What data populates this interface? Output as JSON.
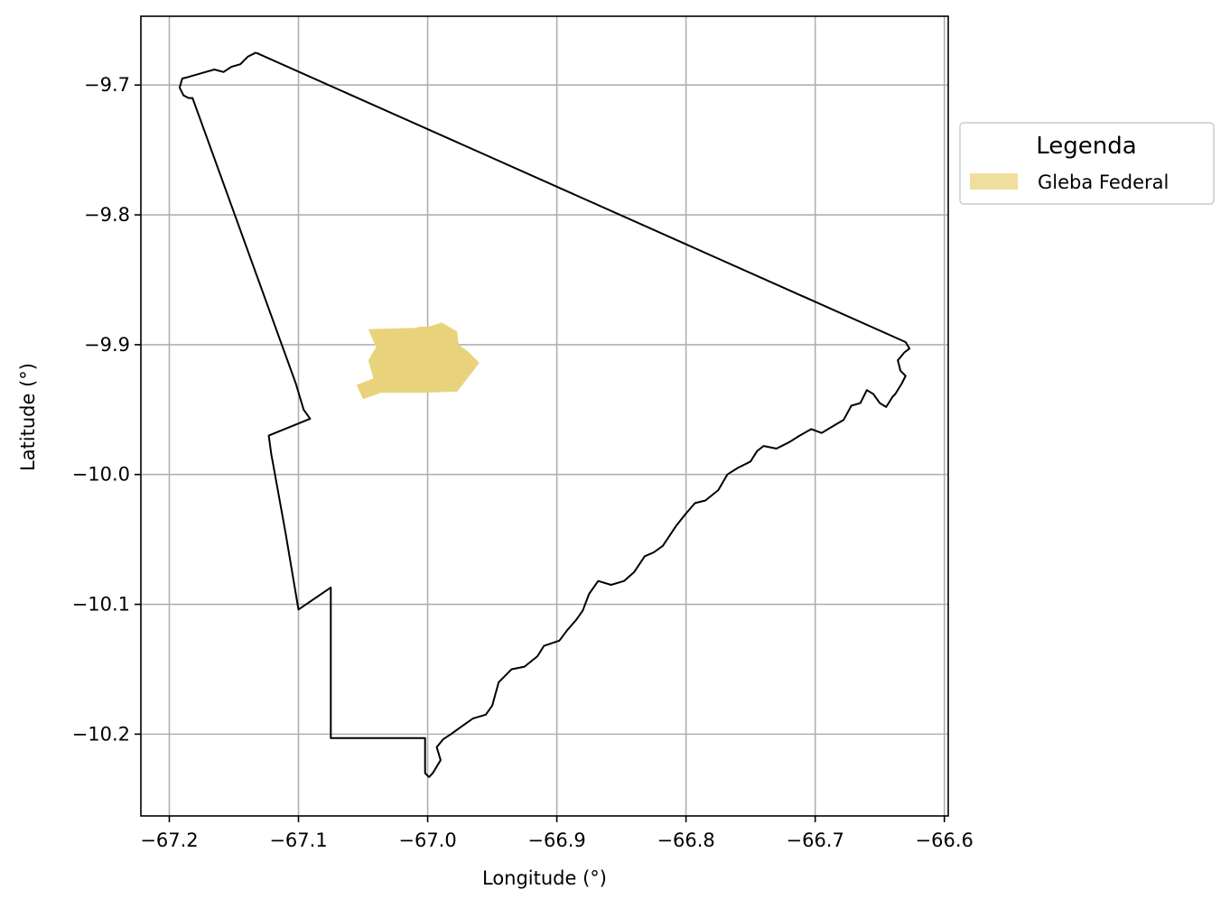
{
  "map": {
    "xlabel": "Longitude (°)",
    "ylabel": "Latitude (°)",
    "xlim": [
      -67.222,
      -66.597
    ],
    "ylim": [
      -10.263,
      -9.647
    ],
    "xticks": [
      {
        "value": -67.2,
        "label": "−67.2"
      },
      {
        "value": -67.1,
        "label": "−67.1"
      },
      {
        "value": -67.0,
        "label": "−67.0"
      },
      {
        "value": -66.9,
        "label": "−66.9"
      },
      {
        "value": -66.8,
        "label": "−66.8"
      },
      {
        "value": -66.7,
        "label": "−66.7"
      },
      {
        "value": -66.6,
        "label": "−66.6"
      }
    ],
    "yticks": [
      {
        "value": -9.7,
        "label": "−9.7"
      },
      {
        "value": -9.8,
        "label": "−9.8"
      },
      {
        "value": -9.9,
        "label": "−9.9"
      },
      {
        "value": -10.0,
        "label": "−10.0"
      },
      {
        "value": -10.1,
        "label": "−10.1"
      },
      {
        "value": -10.2,
        "label": "−10.2"
      }
    ],
    "grid": true,
    "colors": {
      "gleba_fill": "#e8d37c",
      "boundary_stroke": "#000000",
      "grid": "#b0b0b0"
    },
    "legend": {
      "title": "Legenda",
      "placement": "outside-right-top",
      "items": [
        {
          "label": "Gleba Federal",
          "color": "#f0de9c"
        }
      ]
    },
    "boundary": [
      [
        -67.133,
        -9.675
      ],
      [
        -67.139,
        -9.678
      ],
      [
        -67.145,
        -9.684
      ],
      [
        -67.152,
        -9.686
      ],
      [
        -67.158,
        -9.69
      ],
      [
        -67.165,
        -9.688
      ],
      [
        -67.172,
        -9.69
      ],
      [
        -67.179,
        -9.692
      ],
      [
        -67.186,
        -9.694
      ],
      [
        -67.19,
        -9.695
      ],
      [
        -67.192,
        -9.702
      ],
      [
        -67.189,
        -9.708
      ],
      [
        -67.185,
        -9.71
      ],
      [
        -67.182,
        -9.71
      ],
      [
        -67.102,
        -9.93
      ],
      [
        -67.099,
        -9.94
      ],
      [
        -67.096,
        -9.95
      ],
      [
        -67.091,
        -9.957
      ],
      [
        -67.123,
        -9.97
      ],
      [
        -67.121,
        -9.985
      ],
      [
        -67.12,
        -9.99
      ],
      [
        -67.11,
        -10.045
      ],
      [
        -67.1,
        -10.104
      ],
      [
        -67.075,
        -10.087
      ],
      [
        -67.075,
        -10.198
      ],
      [
        -67.075,
        -10.203
      ],
      [
        -67.002,
        -10.203
      ],
      [
        -67.002,
        -10.23
      ],
      [
        -66.999,
        -10.233
      ],
      [
        -66.996,
        -10.23
      ],
      [
        -66.993,
        -10.225
      ],
      [
        -66.99,
        -10.22
      ],
      [
        -66.993,
        -10.21
      ],
      [
        -66.988,
        -10.204
      ],
      [
        -66.982,
        -10.2
      ],
      [
        -66.975,
        -10.195
      ],
      [
        -66.965,
        -10.188
      ],
      [
        -66.955,
        -10.185
      ],
      [
        -66.95,
        -10.178
      ],
      [
        -66.945,
        -10.16
      ],
      [
        -66.935,
        -10.15
      ],
      [
        -66.925,
        -10.148
      ],
      [
        -66.915,
        -10.14
      ],
      [
        -66.91,
        -10.132
      ],
      [
        -66.898,
        -10.128
      ],
      [
        -66.892,
        -10.12
      ],
      [
        -66.885,
        -10.112
      ],
      [
        -66.88,
        -10.105
      ],
      [
        -66.875,
        -10.092
      ],
      [
        -66.868,
        -10.082
      ],
      [
        -66.858,
        -10.085
      ],
      [
        -66.848,
        -10.082
      ],
      [
        -66.84,
        -10.075
      ],
      [
        -66.832,
        -10.063
      ],
      [
        -66.825,
        -10.06
      ],
      [
        -66.818,
        -10.055
      ],
      [
        -66.812,
        -10.046
      ],
      [
        -66.808,
        -10.04
      ],
      [
        -66.8,
        -10.03
      ],
      [
        -66.793,
        -10.022
      ],
      [
        -66.785,
        -10.02
      ],
      [
        -66.775,
        -10.012
      ],
      [
        -66.768,
        -10.0
      ],
      [
        -66.76,
        -9.995
      ],
      [
        -66.75,
        -9.99
      ],
      [
        -66.745,
        -9.982
      ],
      [
        -66.74,
        -9.978
      ],
      [
        -66.73,
        -9.98
      ],
      [
        -66.72,
        -9.975
      ],
      [
        -66.712,
        -9.97
      ],
      [
        -66.703,
        -9.965
      ],
      [
        -66.695,
        -9.968
      ],
      [
        -66.685,
        -9.962
      ],
      [
        -66.678,
        -9.958
      ],
      [
        -66.672,
        -9.947
      ],
      [
        -66.665,
        -9.945
      ],
      [
        -66.66,
        -9.935
      ],
      [
        -66.655,
        -9.938
      ],
      [
        -66.65,
        -9.945
      ],
      [
        -66.645,
        -9.948
      ],
      [
        -66.64,
        -9.94
      ],
      [
        -66.638,
        -9.938
      ],
      [
        -66.633,
        -9.93
      ],
      [
        -66.63,
        -9.924
      ],
      [
        -66.634,
        -9.92
      ],
      [
        -66.636,
        -9.912
      ],
      [
        -66.631,
        -9.906
      ],
      [
        -66.627,
        -9.903
      ],
      [
        -66.63,
        -9.898
      ],
      [
        -67.133,
        -9.675
      ]
    ],
    "gleba_polygon": [
      [
        -67.046,
        -9.888
      ],
      [
        -67.01,
        -9.887
      ],
      [
        -67.005,
        -9.886
      ],
      [
        -66.999,
        -9.886
      ],
      [
        -66.989,
        -9.883
      ],
      [
        -66.977,
        -9.89
      ],
      [
        -66.976,
        -9.9
      ],
      [
        -66.969,
        -9.905
      ],
      [
        -66.96,
        -9.914
      ],
      [
        -66.977,
        -9.936
      ],
      [
        -67.002,
        -9.937
      ],
      [
        -67.036,
        -9.937
      ],
      [
        -67.05,
        -9.942
      ],
      [
        -67.055,
        -9.931
      ],
      [
        -67.042,
        -9.926
      ],
      [
        -67.046,
        -9.912
      ],
      [
        -67.04,
        -9.902
      ]
    ]
  }
}
